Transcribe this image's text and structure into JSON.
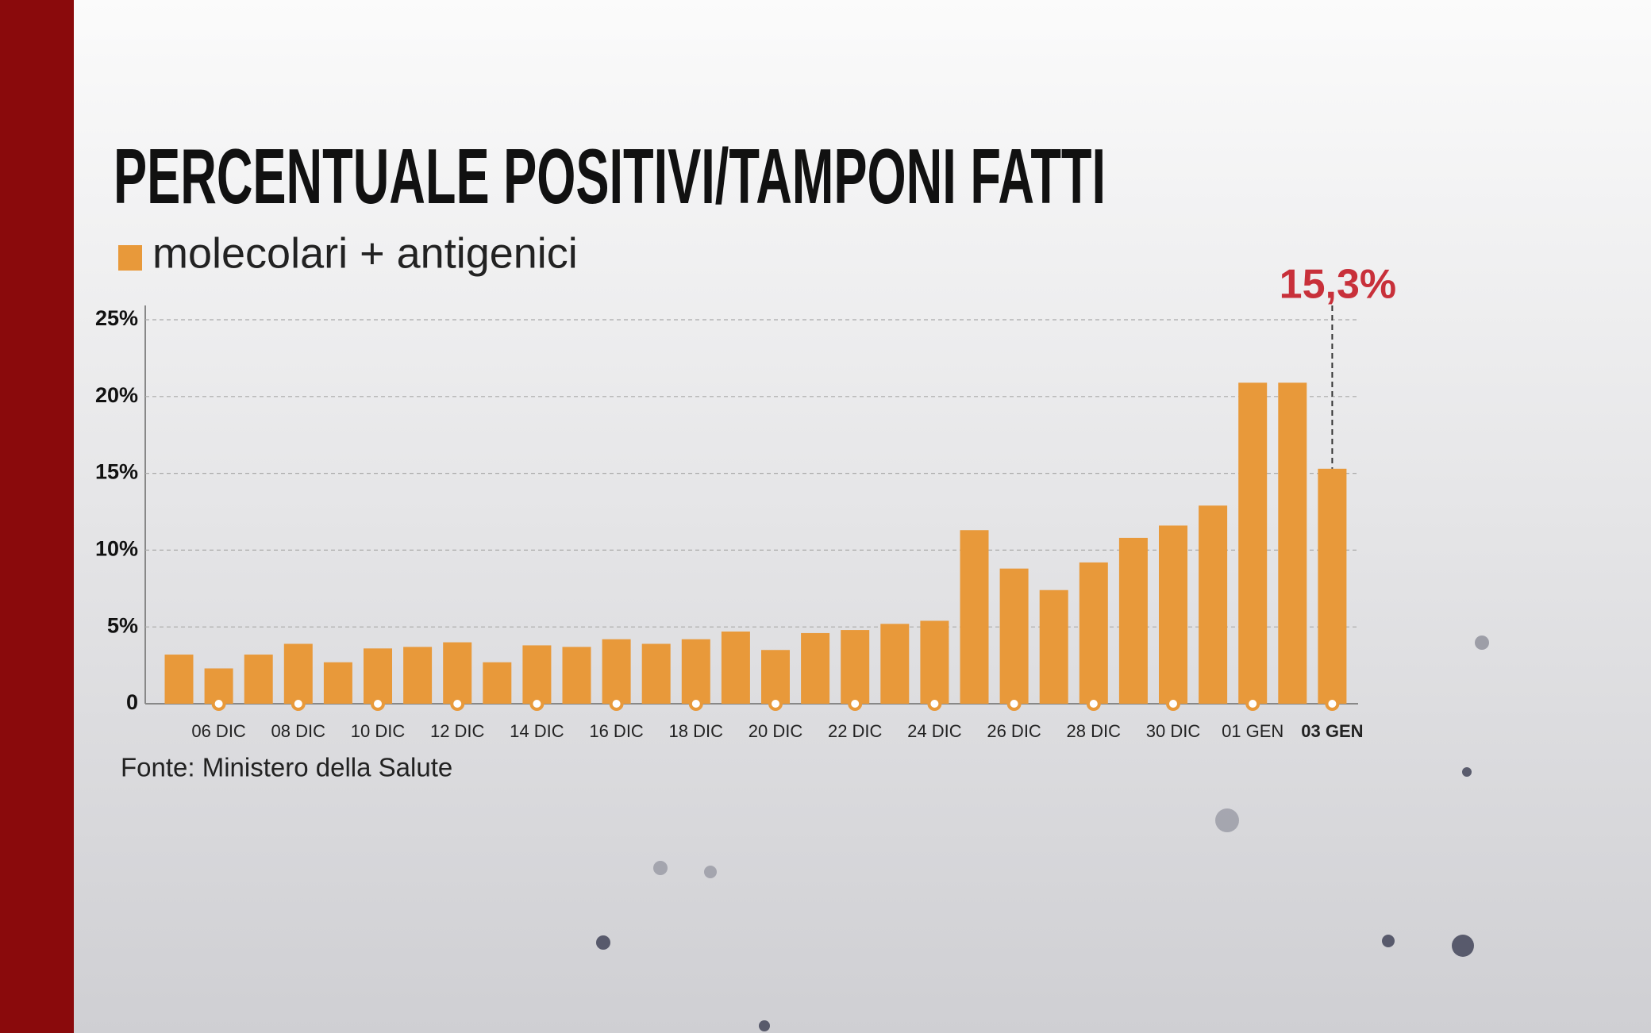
{
  "chart_data": {
    "type": "bar",
    "title": "PERCENTUALE POSITIVI/TAMPONI FATTI",
    "source": "Fonte: Ministero della Salute",
    "categories": [
      null,
      "06 DIC",
      null,
      "08 DIC",
      null,
      "10 DIC",
      null,
      "12 DIC",
      null,
      "14 DIC",
      null,
      "16 DIC",
      null,
      "18 DIC",
      null,
      "20 DIC",
      null,
      "22 DIC",
      null,
      "24 DIC",
      null,
      "26 DIC",
      null,
      "28 DIC",
      null,
      "30 DIC",
      null,
      "01 GEN",
      null,
      "03 GEN"
    ],
    "series": [
      {
        "name": "molecolari + antigenici",
        "color": "#e8993a",
        "values": [
          3.2,
          2.3,
          3.2,
          3.9,
          2.7,
          3.6,
          3.7,
          4.0,
          2.7,
          3.8,
          3.7,
          4.2,
          3.9,
          4.2,
          4.7,
          3.5,
          4.6,
          4.8,
          5.2,
          5.4,
          11.3,
          8.8,
          7.4,
          9.2,
          10.8,
          11.6,
          12.9,
          20.9,
          20.9,
          15.3
        ],
        "value_labels": [
          null,
          null,
          null,
          null,
          null,
          null,
          null,
          null,
          null,
          null,
          null,
          null,
          null,
          null,
          null,
          null,
          null,
          null,
          null,
          null,
          null,
          null,
          null,
          null,
          null,
          null,
          null,
          null,
          null,
          "15,3%"
        ]
      }
    ],
    "ylim": [
      0,
      25
    ],
    "yticks": [
      0,
      {
        "value": 5,
        "label": "5%"
      },
      {
        "value": 10,
        "label": "10%"
      },
      {
        "value": 15,
        "label": "15%"
      },
      {
        "value": 20,
        "label": "20%"
      },
      {
        "value": 25,
        "label": "25%"
      }
    ],
    "grid": true
  }
}
